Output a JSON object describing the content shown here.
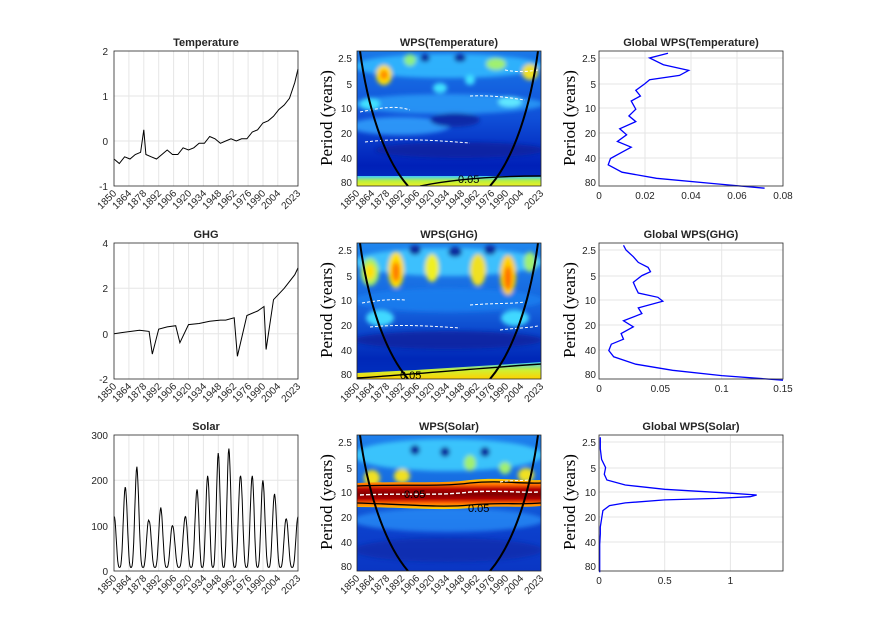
{
  "figure": {
    "x_tick_labels": [
      "1850",
      "1864",
      "1878",
      "1892",
      "1906",
      "1920",
      "1934",
      "1948",
      "1962",
      "1976",
      "1990",
      "2004",
      "2023"
    ],
    "period_tick_labels": [
      "2.5",
      "5",
      "10",
      "20",
      "40",
      "80"
    ],
    "period_axis_label": "Period (years)",
    "significance_label": "0.05",
    "colors": {
      "series_line": "#000000",
      "global_line": "#0000ff",
      "grid": "#e6e6e6",
      "axis": "#262626",
      "coi": "#000000",
      "ridge": "#ffffff"
    }
  },
  "chart_data": [
    {
      "type": "line",
      "panel": "time-series",
      "title": "Temperature",
      "ylim": [
        -1,
        2
      ],
      "yticks": [
        -1,
        0,
        1,
        2
      ],
      "xlim": [
        1850,
        2023
      ],
      "x": [
        1850,
        1855,
        1860,
        1865,
        1870,
        1875,
        1878,
        1880,
        1885,
        1890,
        1895,
        1900,
        1905,
        1910,
        1915,
        1920,
        1925,
        1930,
        1935,
        1940,
        1945,
        1950,
        1955,
        1960,
        1965,
        1970,
        1975,
        1980,
        1985,
        1990,
        1995,
        2000,
        2005,
        2010,
        2015,
        2020,
        2023
      ],
      "values": [
        -0.4,
        -0.5,
        -0.35,
        -0.4,
        -0.3,
        -0.25,
        0.25,
        -0.3,
        -0.35,
        -0.4,
        -0.3,
        -0.2,
        -0.3,
        -0.3,
        -0.15,
        -0.2,
        -0.15,
        -0.05,
        -0.05,
        0.1,
        0.05,
        -0.05,
        0.0,
        0.05,
        0.0,
        0.05,
        0.05,
        0.2,
        0.25,
        0.4,
        0.45,
        0.55,
        0.7,
        0.8,
        0.95,
        1.3,
        1.6
      ]
    },
    {
      "type": "heatmap",
      "panel": "wavelet-power",
      "title": "WPS(Temperature)",
      "xlim": [
        1850,
        2023
      ],
      "period_range": [
        2,
        85
      ],
      "significance_contour_label": "0.05"
    },
    {
      "type": "line",
      "panel": "global-spectrum",
      "title": "Global WPS(Temperature)",
      "xlim": [
        0,
        0.08
      ],
      "xticks": [
        0,
        0.02,
        0.04,
        0.06,
        0.08
      ],
      "xtick_labels": [
        "0",
        "0.02",
        "0.04",
        "0.06",
        "0.08"
      ],
      "period": [
        2.2,
        2.5,
        3,
        3.5,
        4,
        4.5,
        5,
        6,
        7,
        8,
        10,
        12,
        14,
        17,
        20,
        24,
        28,
        32,
        38,
        45,
        55,
        65,
        75,
        85
      ],
      "power": [
        0.03,
        0.022,
        0.028,
        0.039,
        0.035,
        0.022,
        0.02,
        0.016,
        0.018,
        0.014,
        0.016,
        0.013,
        0.016,
        0.009,
        0.012,
        0.008,
        0.014,
        0.01,
        0.005,
        0.004,
        0.01,
        0.025,
        0.05,
        0.072
      ]
    },
    {
      "type": "line",
      "panel": "time-series",
      "title": "GHG",
      "ylim": [
        -2,
        4
      ],
      "yticks": [
        -2,
        0,
        2,
        4
      ],
      "xlim": [
        1850,
        2023
      ],
      "x": [
        1850,
        1858,
        1866,
        1874,
        1883,
        1886,
        1892,
        1900,
        1908,
        1912,
        1920,
        1930,
        1940,
        1950,
        1955,
        1963,
        1966,
        1975,
        1985,
        1991,
        1993,
        2000,
        2010,
        2020,
        2023
      ],
      "values": [
        0.0,
        0.05,
        0.1,
        0.15,
        0.1,
        -0.9,
        0.2,
        0.3,
        0.35,
        -0.4,
        0.4,
        0.45,
        0.55,
        0.6,
        0.6,
        0.7,
        -1.0,
        0.8,
        1.0,
        1.2,
        -0.7,
        1.5,
        2.0,
        2.6,
        2.9
      ]
    },
    {
      "type": "heatmap",
      "panel": "wavelet-power",
      "title": "WPS(GHG)",
      "xlim": [
        1850,
        2023
      ],
      "period_range": [
        2,
        85
      ],
      "significance_contour_label": "0.05"
    },
    {
      "type": "line",
      "panel": "global-spectrum",
      "title": "Global WPS(GHG)",
      "xlim": [
        0,
        0.15
      ],
      "xticks": [
        0,
        0.05,
        0.1,
        0.15
      ],
      "xtick_labels": [
        "0",
        "0.05",
        "0.1",
        "0.15"
      ],
      "period": [
        2.2,
        2.5,
        3,
        3.5,
        4,
        4.5,
        5,
        6,
        7,
        8,
        9,
        10,
        12,
        14,
        17,
        20,
        24,
        28,
        32,
        38,
        45,
        55,
        65,
        75,
        85
      ],
      "power": [
        0.02,
        0.022,
        0.028,
        0.032,
        0.04,
        0.042,
        0.035,
        0.028,
        0.03,
        0.032,
        0.048,
        0.052,
        0.032,
        0.035,
        0.02,
        0.028,
        0.018,
        0.02,
        0.01,
        0.008,
        0.012,
        0.03,
        0.06,
        0.1,
        0.15
      ]
    },
    {
      "type": "line",
      "panel": "time-series",
      "title": "Solar",
      "ylim": [
        0,
        300
      ],
      "yticks": [
        0,
        100,
        200,
        300
      ],
      "xlim": [
        1850,
        2023
      ],
      "cycle_years": [
        1850,
        1860.5,
        1871.5,
        1883,
        1894,
        1905,
        1917,
        1928,
        1938,
        1948,
        1958,
        1969,
        1980,
        1990,
        2001,
        2012,
        2023
      ],
      "cycle_peaks": [
        120,
        185,
        230,
        110,
        140,
        100,
        120,
        180,
        210,
        260,
        270,
        210,
        210,
        200,
        170,
        115,
        120
      ],
      "cycle_minimum": 8
    },
    {
      "type": "heatmap",
      "panel": "wavelet-power",
      "title": "WPS(Solar)",
      "xlim": [
        1850,
        2023
      ],
      "period_range": [
        2,
        85
      ],
      "significance_contour_label": "0.05"
    },
    {
      "type": "line",
      "panel": "global-spectrum",
      "title": "Global WPS(Solar)",
      "xlim": [
        0,
        1.4
      ],
      "xticks": [
        0,
        0.5,
        1
      ],
      "xtick_labels": [
        "0",
        "0.5",
        "1"
      ],
      "period": [
        2.2,
        3,
        4,
        5,
        6,
        7,
        8,
        9,
        10,
        10.5,
        11,
        11.5,
        12,
        13,
        14,
        16,
        20,
        25,
        30,
        40,
        60,
        85
      ],
      "power": [
        0.01,
        0.01,
        0.02,
        0.05,
        0.04,
        0.06,
        0.2,
        0.5,
        1.0,
        1.2,
        1.15,
        0.9,
        0.5,
        0.2,
        0.08,
        0.03,
        0.02,
        0.01,
        0.01,
        0.005,
        0.005,
        0.005
      ]
    }
  ]
}
